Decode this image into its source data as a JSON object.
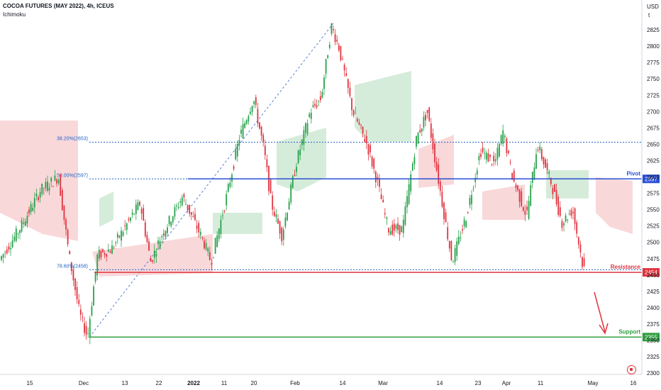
{
  "header": {
    "title": "COCOA FUTURES (MAY 2022), 4h, ICEUS",
    "indicator": "Ichimoku"
  },
  "axis": {
    "currency": "USD",
    "unit": "t"
  },
  "chart_data": {
    "type": "candlestick",
    "y_ticks": [
      2300,
      2325,
      2350,
      2375,
      2400,
      2425,
      2450,
      2475,
      2500,
      2525,
      2550,
      2575,
      2600,
      2625,
      2650,
      2675,
      2700,
      2725,
      2750,
      2775,
      2800,
      2825
    ],
    "ylim": [
      2290,
      2845
    ],
    "x_ticks": [
      "15",
      "Dec",
      "13",
      "22",
      "2022",
      "11",
      "20",
      "Feb",
      "14",
      "Mar",
      "14",
      "23",
      "Apr",
      "11",
      "May",
      "16"
    ],
    "levels": [
      {
        "name": "Pivot",
        "value": 2597,
        "tag": "2597",
        "color": "#2a4fd6"
      },
      {
        "name": "Resistance",
        "value": 2454,
        "tag": "2454",
        "color": "#e0343f"
      },
      {
        "name": "Support",
        "value": 2355,
        "tag": "2355",
        "color": "#2e9e3e"
      }
    ],
    "fib_levels": [
      {
        "label": "38.20%(2653)",
        "value": 2653
      },
      {
        "label": "50.00%(2597)",
        "value": 2597
      },
      {
        "label": "78.60%(2458)",
        "value": 2458
      }
    ],
    "swing_low": 2355,
    "swing_high": 2835,
    "colors": {
      "up": "#26a24a",
      "down": "#e0343f",
      "cloud_up": "#cfe9d3",
      "cloud_down": "#f8d1d3"
    }
  }
}
